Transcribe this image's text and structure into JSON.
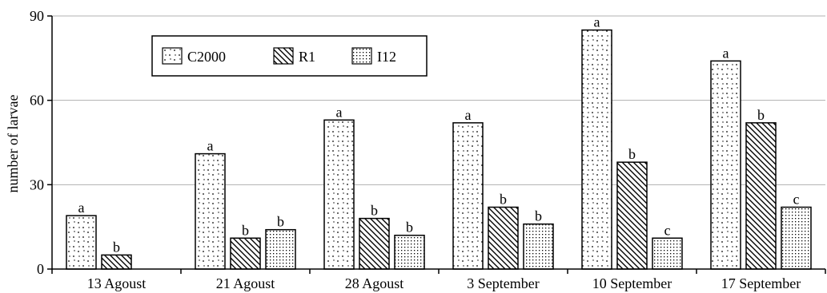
{
  "chart_data": {
    "type": "bar",
    "title": "",
    "xlabel": "",
    "ylabel": "number of larvae",
    "ylim": [
      0,
      90
    ],
    "yticks": [
      0,
      30,
      60,
      90
    ],
    "grid": true,
    "legend_position": "top-left",
    "categories": [
      "13 Agoust",
      "21 Agoust",
      "28 Agoust",
      "3 September",
      "10 September",
      "17 September"
    ],
    "series": [
      {
        "name": "C2000",
        "pattern": "dots",
        "values": [
          19,
          41,
          53,
          52,
          85,
          74
        ],
        "labels": [
          "a",
          "a",
          "a",
          "a",
          "a",
          "a"
        ]
      },
      {
        "name": "R1",
        "pattern": "diagonal",
        "values": [
          5,
          11,
          18,
          22,
          38,
          52
        ],
        "labels": [
          "b",
          "b",
          "b",
          "b",
          "b",
          "b"
        ]
      },
      {
        "name": "I12",
        "pattern": "grid-dots",
        "values": [
          null,
          14,
          12,
          16,
          11,
          22
        ],
        "labels": [
          null,
          "b",
          "b",
          "b",
          "c",
          "c"
        ]
      }
    ]
  },
  "colors": {
    "axis": "#000000",
    "grid": "#b0b0b0",
    "bar_fill": "#ffffff"
  }
}
